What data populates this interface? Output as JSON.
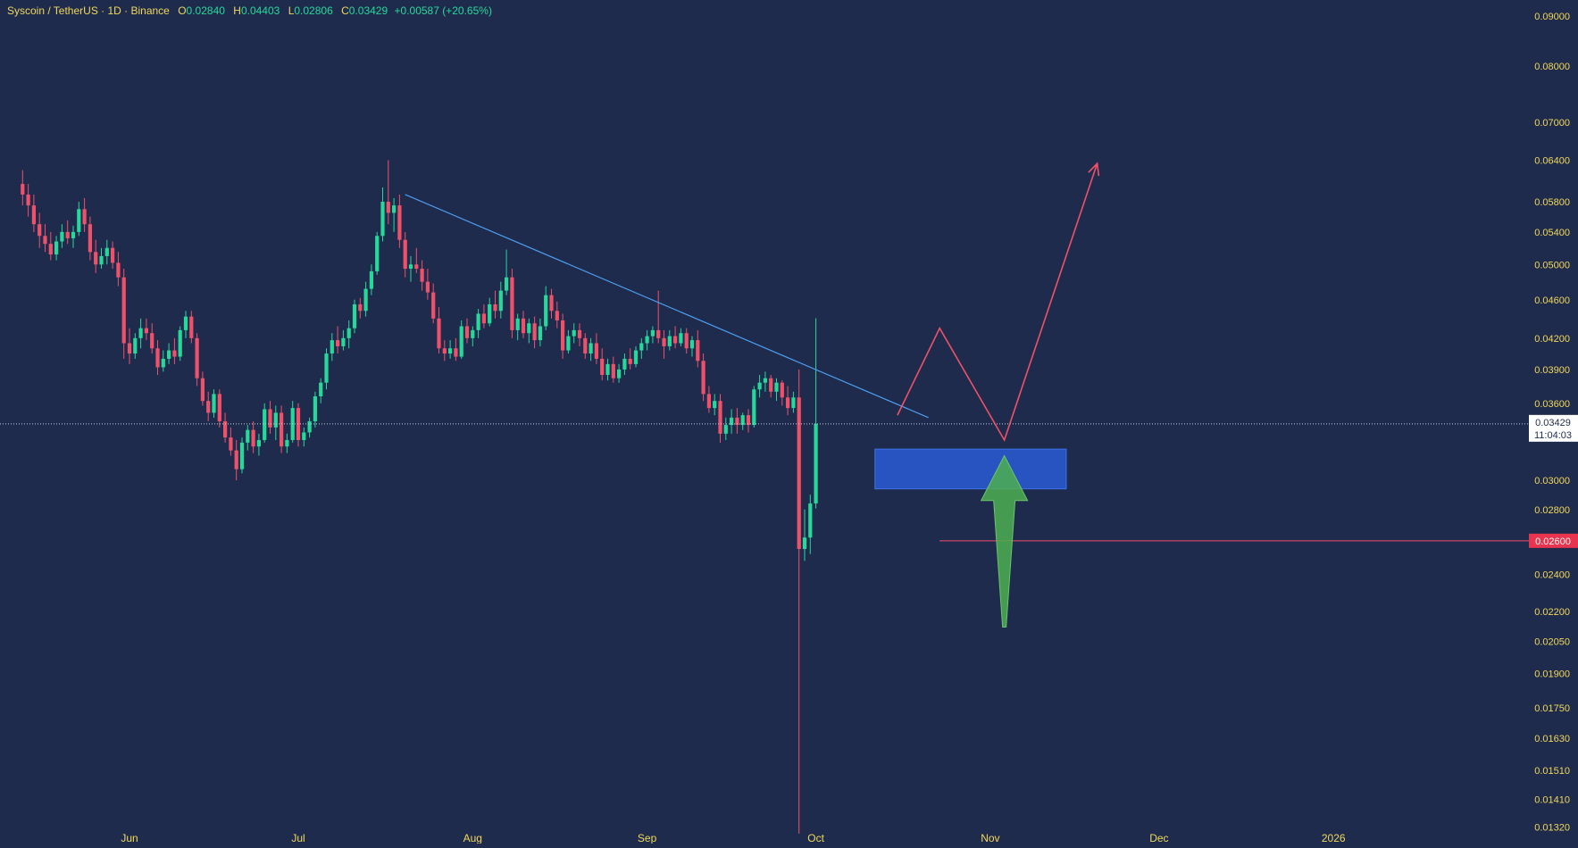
{
  "header": {
    "symbol": "Syscoin / TetherUS · 1D · Binance",
    "open_label": "O",
    "open_value": "0.02840",
    "high_label": "H",
    "high_value": "0.04403",
    "low_label": "L",
    "low_value": "0.02806",
    "close_label": "C",
    "close_value": "0.03429",
    "change": "+0.00587 (+20.65%)"
  },
  "colors": {
    "background": "#1f2b4d",
    "up": "#26d99a",
    "down": "#f0516a",
    "axis_text": "#f0d85a",
    "trendline": "#4c9ef0",
    "zone": "#2a5cd6",
    "projection": "#f0516a",
    "arrow": "#4caf50"
  },
  "chart_data": {
    "type": "candlestick",
    "scale": "log",
    "ylim": [
      0.0127,
      0.0935
    ],
    "y_ticks": [
      "0.09000",
      "0.08000",
      "0.07000",
      "0.06400",
      "0.05800",
      "0.05400",
      "0.05000",
      "0.04600",
      "0.04200",
      "0.03900",
      "0.03600",
      "0.03000",
      "0.02800",
      "0.02400",
      "0.02200",
      "0.02050",
      "0.01900",
      "0.01750",
      "0.01630",
      "0.01510",
      "0.01410",
      "0.01320"
    ],
    "x_ticks": [
      {
        "label": "Jun",
        "day": 0
      },
      {
        "label": "Jul",
        "day": 30
      },
      {
        "label": "Aug",
        "day": 61
      },
      {
        "label": "Sep",
        "day": 92
      },
      {
        "label": "Oct",
        "day": 122
      },
      {
        "label": "Nov",
        "day": 153
      },
      {
        "label": "Dec",
        "day": 183
      },
      {
        "label": "2026",
        "day": 214
      }
    ],
    "first_candle_day": -19,
    "ohlc": [
      [
        0.0605,
        0.0625,
        0.0575,
        0.059
      ],
      [
        0.059,
        0.0605,
        0.056,
        0.0575
      ],
      [
        0.0575,
        0.059,
        0.054,
        0.055
      ],
      [
        0.055,
        0.0565,
        0.052,
        0.0535
      ],
      [
        0.0535,
        0.055,
        0.0515,
        0.0525
      ],
      [
        0.0525,
        0.054,
        0.0505,
        0.0512
      ],
      [
        0.0512,
        0.0535,
        0.0505,
        0.0528
      ],
      [
        0.0528,
        0.055,
        0.052,
        0.054
      ],
      [
        0.054,
        0.0555,
        0.0525,
        0.0532
      ],
      [
        0.0532,
        0.0548,
        0.052,
        0.054
      ],
      [
        0.054,
        0.058,
        0.0535,
        0.057
      ],
      [
        0.057,
        0.0585,
        0.054,
        0.055
      ],
      [
        0.055,
        0.056,
        0.0505,
        0.0515
      ],
      [
        0.0515,
        0.053,
        0.049,
        0.05
      ],
      [
        0.05,
        0.052,
        0.0495,
        0.051
      ],
      [
        0.051,
        0.053,
        0.05,
        0.052
      ],
      [
        0.052,
        0.0528,
        0.0495,
        0.0502
      ],
      [
        0.0502,
        0.0515,
        0.0475,
        0.0485
      ],
      [
        0.0485,
        0.0495,
        0.04,
        0.0415
      ],
      [
        0.0415,
        0.043,
        0.0395,
        0.0405
      ],
      [
        0.0405,
        0.0425,
        0.04,
        0.042
      ],
      [
        0.042,
        0.044,
        0.041,
        0.043
      ],
      [
        0.043,
        0.044,
        0.0418,
        0.0425
      ],
      [
        0.0425,
        0.0435,
        0.0405,
        0.041
      ],
      [
        0.041,
        0.0418,
        0.0385,
        0.0392
      ],
      [
        0.0392,
        0.0408,
        0.0388,
        0.04
      ],
      [
        0.04,
        0.0415,
        0.0395,
        0.0408
      ],
      [
        0.0408,
        0.042,
        0.0395,
        0.0402
      ],
      [
        0.0402,
        0.0432,
        0.0398,
        0.0428
      ],
      [
        0.0428,
        0.0448,
        0.042,
        0.0442
      ],
      [
        0.0442,
        0.0448,
        0.0415,
        0.042
      ],
      [
        0.042,
        0.0425,
        0.0375,
        0.0382
      ],
      [
        0.0382,
        0.0388,
        0.0358,
        0.0362
      ],
      [
        0.0362,
        0.037,
        0.0345,
        0.0352
      ],
      [
        0.0352,
        0.0372,
        0.0348,
        0.0368
      ],
      [
        0.0368,
        0.0372,
        0.034,
        0.0345
      ],
      [
        0.0345,
        0.0352,
        0.0328,
        0.0332
      ],
      [
        0.0332,
        0.034,
        0.0318,
        0.0322
      ],
      [
        0.0322,
        0.033,
        0.03,
        0.0308
      ],
      [
        0.0308,
        0.0332,
        0.0305,
        0.0328
      ],
      [
        0.0328,
        0.0342,
        0.0322,
        0.0338
      ],
      [
        0.0338,
        0.0345,
        0.032,
        0.0325
      ],
      [
        0.0325,
        0.0335,
        0.0318,
        0.033
      ],
      [
        0.033,
        0.036,
        0.0328,
        0.0355
      ],
      [
        0.0355,
        0.0362,
        0.0335,
        0.034
      ],
      [
        0.034,
        0.0358,
        0.033,
        0.0352
      ],
      [
        0.0352,
        0.0358,
        0.032,
        0.0325
      ],
      [
        0.0325,
        0.0335,
        0.032,
        0.033
      ],
      [
        0.033,
        0.0362,
        0.0328,
        0.0356
      ],
      [
        0.0356,
        0.036,
        0.0325,
        0.033
      ],
      [
        0.033,
        0.034,
        0.0325,
        0.0336
      ],
      [
        0.0336,
        0.0348,
        0.0332,
        0.0345
      ],
      [
        0.0345,
        0.037,
        0.034,
        0.0366
      ],
      [
        0.0366,
        0.0382,
        0.036,
        0.0378
      ],
      [
        0.0378,
        0.041,
        0.0372,
        0.0405
      ],
      [
        0.0405,
        0.0425,
        0.0398,
        0.0418
      ],
      [
        0.0418,
        0.0432,
        0.0405,
        0.0412
      ],
      [
        0.0412,
        0.0428,
        0.0408,
        0.042
      ],
      [
        0.042,
        0.0438,
        0.041,
        0.043
      ],
      [
        0.043,
        0.046,
        0.0425,
        0.0455
      ],
      [
        0.0455,
        0.0462,
        0.044,
        0.0448
      ],
      [
        0.0448,
        0.048,
        0.0442,
        0.0472
      ],
      [
        0.0472,
        0.05,
        0.0465,
        0.0492
      ],
      [
        0.0492,
        0.054,
        0.0488,
        0.0535
      ],
      [
        0.0535,
        0.06,
        0.0528,
        0.058
      ],
      [
        0.058,
        0.064,
        0.055,
        0.0565
      ],
      [
        0.0565,
        0.0585,
        0.054,
        0.0575
      ],
      [
        0.0575,
        0.059,
        0.052,
        0.053
      ],
      [
        0.053,
        0.054,
        0.0485,
        0.0495
      ],
      [
        0.0495,
        0.051,
        0.048,
        0.05
      ],
      [
        0.05,
        0.052,
        0.049,
        0.0495
      ],
      [
        0.0495,
        0.0505,
        0.047,
        0.048
      ],
      [
        0.048,
        0.0495,
        0.046,
        0.0468
      ],
      [
        0.0468,
        0.0478,
        0.0435,
        0.044
      ],
      [
        0.044,
        0.0452,
        0.0405,
        0.041
      ],
      [
        0.041,
        0.0418,
        0.0398,
        0.0405
      ],
      [
        0.0405,
        0.0418,
        0.04,
        0.041
      ],
      [
        0.041,
        0.042,
        0.0398,
        0.0402
      ],
      [
        0.0402,
        0.0438,
        0.04,
        0.0432
      ],
      [
        0.0432,
        0.044,
        0.0415,
        0.042
      ],
      [
        0.042,
        0.0432,
        0.0412,
        0.0428
      ],
      [
        0.0428,
        0.045,
        0.042,
        0.0445
      ],
      [
        0.0445,
        0.0455,
        0.043,
        0.0435
      ],
      [
        0.0435,
        0.0462,
        0.0432,
        0.0455
      ],
      [
        0.0455,
        0.047,
        0.044,
        0.0448
      ],
      [
        0.0448,
        0.048,
        0.044,
        0.047
      ],
      [
        0.047,
        0.0518,
        0.0465,
        0.0485
      ],
      [
        0.0485,
        0.0495,
        0.042,
        0.0428
      ],
      [
        0.0428,
        0.0445,
        0.0418,
        0.044
      ],
      [
        0.044,
        0.0448,
        0.042,
        0.0425
      ],
      [
        0.0425,
        0.044,
        0.0415,
        0.0435
      ],
      [
        0.0435,
        0.0442,
        0.041,
        0.0418
      ],
      [
        0.0418,
        0.044,
        0.0412,
        0.0432
      ],
      [
        0.0432,
        0.0475,
        0.0428,
        0.0465
      ],
      [
        0.0465,
        0.0472,
        0.044,
        0.0448
      ],
      [
        0.0448,
        0.0458,
        0.043,
        0.0438
      ],
      [
        0.0438,
        0.0445,
        0.04,
        0.0408
      ],
      [
        0.0408,
        0.0428,
        0.0405,
        0.0422
      ],
      [
        0.0422,
        0.0435,
        0.0415,
        0.0428
      ],
      [
        0.0428,
        0.0435,
        0.0412,
        0.042
      ],
      [
        0.042,
        0.0425,
        0.04,
        0.0405
      ],
      [
        0.0405,
        0.042,
        0.0398,
        0.0415
      ],
      [
        0.0415,
        0.0425,
        0.0395,
        0.04
      ],
      [
        0.04,
        0.041,
        0.038,
        0.0385
      ],
      [
        0.0385,
        0.04,
        0.038,
        0.0395
      ],
      [
        0.0395,
        0.0402,
        0.0378,
        0.0382
      ],
      [
        0.0382,
        0.0395,
        0.0378,
        0.039
      ],
      [
        0.039,
        0.0405,
        0.0385,
        0.04
      ],
      [
        0.04,
        0.041,
        0.039,
        0.0395
      ],
      [
        0.0395,
        0.0412,
        0.0392,
        0.0408
      ],
      [
        0.0408,
        0.042,
        0.04,
        0.0415
      ],
      [
        0.0415,
        0.0428,
        0.0408,
        0.0422
      ],
      [
        0.0422,
        0.0432,
        0.0415,
        0.0428
      ],
      [
        0.0428,
        0.047,
        0.0415,
        0.042
      ],
      [
        0.042,
        0.0428,
        0.04,
        0.0412
      ],
      [
        0.0412,
        0.0428,
        0.0408,
        0.0422
      ],
      [
        0.0422,
        0.0432,
        0.041,
        0.0415
      ],
      [
        0.0415,
        0.043,
        0.0412,
        0.0425
      ],
      [
        0.0425,
        0.043,
        0.0405,
        0.041
      ],
      [
        0.041,
        0.0422,
        0.0402,
        0.0418
      ],
      [
        0.0418,
        0.0428,
        0.0392,
        0.0398
      ],
      [
        0.0398,
        0.0405,
        0.0362,
        0.0368
      ],
      [
        0.0368,
        0.0375,
        0.0352,
        0.0356
      ],
      [
        0.0356,
        0.0368,
        0.035,
        0.0362
      ],
      [
        0.0362,
        0.0368,
        0.0328,
        0.0335
      ],
      [
        0.0335,
        0.0348,
        0.033,
        0.0342
      ],
      [
        0.0342,
        0.0355,
        0.0335,
        0.0348
      ],
      [
        0.0348,
        0.0356,
        0.0335,
        0.0342
      ],
      [
        0.0342,
        0.0352,
        0.0338,
        0.035
      ],
      [
        0.035,
        0.0355,
        0.0336,
        0.0342
      ],
      [
        0.0342,
        0.0375,
        0.034,
        0.0372
      ],
      [
        0.0372,
        0.0385,
        0.0365,
        0.0378
      ],
      [
        0.0378,
        0.0388,
        0.037,
        0.0382
      ],
      [
        0.0382,
        0.0385,
        0.0365,
        0.037
      ],
      [
        0.037,
        0.0382,
        0.0362,
        0.0378
      ],
      [
        0.0378,
        0.038,
        0.0358,
        0.0365
      ],
      [
        0.0365,
        0.0375,
        0.035,
        0.0356
      ],
      [
        0.0356,
        0.037,
        0.0352,
        0.0365
      ],
      [
        0.0365,
        0.039,
        0.013,
        0.0255
      ],
      [
        0.0255,
        0.028,
        0.0248,
        0.0262
      ],
      [
        0.0262,
        0.029,
        0.0252,
        0.0284
      ],
      [
        0.0284,
        0.04403,
        0.02806,
        0.03429
      ]
    ],
    "last_price": "0.03429",
    "countdown": "11:04:03",
    "level_label": "0.02600"
  }
}
